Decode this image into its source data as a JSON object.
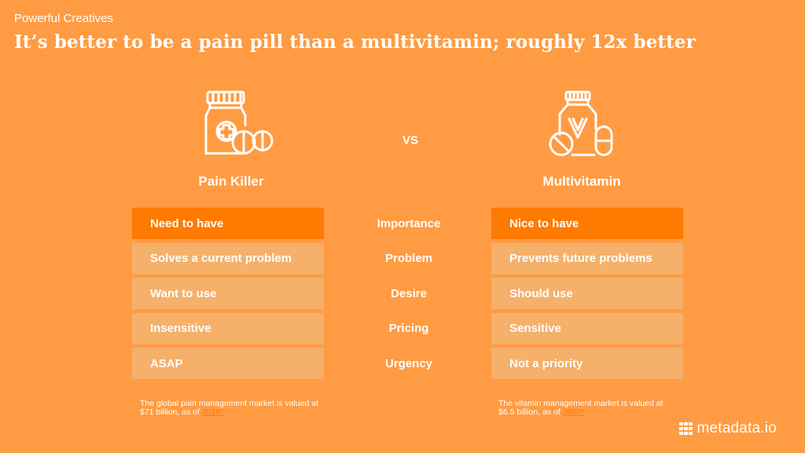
{
  "eyebrow": "Powerful Creatives",
  "headline": "It’s better to be a pain pill than a multivitamin; roughly 12x better",
  "vs": "VS",
  "left": {
    "title": "Pain Killer",
    "rows": [
      "Need to have",
      "Solves a current problem",
      "Want to use",
      "Insensitive",
      "ASAP"
    ],
    "footnote_text": "The global pain management market is valued at $71 billion, as of ",
    "footnote_link": "2019*"
  },
  "middle": {
    "rows": [
      "Importance",
      "Problem",
      "Desire",
      "Pricing",
      "Urgency"
    ]
  },
  "right": {
    "title": "Multivitamin",
    "rows": [
      "Nice to have",
      "Prevents future problems",
      "Should use",
      "Sensitive",
      "Not a priority"
    ],
    "footnote_text": "The vitamin management market is valued at $6.5 billion, as of ",
    "footnote_link": "2020*"
  },
  "brand": {
    "name": "metadata.io"
  },
  "colors": {
    "background": "#ff9b42",
    "highlight": "#ff7a00",
    "row": "#f5b06a",
    "text": "#ffffff"
  },
  "icons": {
    "left": "pill-bottle-with-pills-icon",
    "right": "vitamin-bottle-with-pills-icon"
  }
}
